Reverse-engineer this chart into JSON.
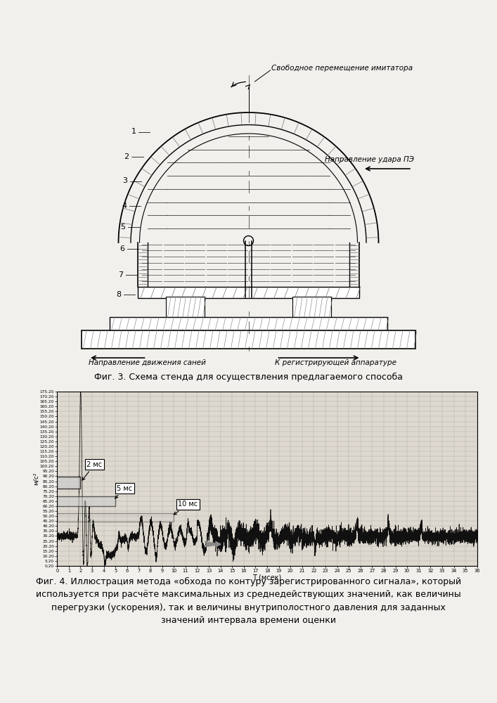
{
  "fig3_caption": "Фиг. 3. Схема стенда для осуществления предлагаемого способа",
  "fig4_caption_line1": "Фиг. 4. Иллюстрация метода «обхода по контуру зарегистрированного сигнала», который",
  "fig4_caption_line2": "используется при расчёте максимальных из среднедействующих значений, как величины",
  "fig4_caption_line3": "перегрузки (ускорения), так и величины внутриполостного давления для заданных",
  "fig4_caption_line4": "значений интервала времени оценки",
  "background_color": "#f0eeea",
  "label_svobodnoe": "Свободное перемещение имитатора",
  "label_napravlenie_udara": "Направление удара ПЭ",
  "label_napravlenie_dvizheniya": "Направление движения саней",
  "label_k_registr": "К регистрирующей аппаратуре",
  "graph_xlabel": "T (мсек)",
  "graph_ylabel": "м/с²",
  "annotation_2ms": "2 мс",
  "annotation_5ms": "5 мс",
  "annotation_10ms": "10 мс"
}
